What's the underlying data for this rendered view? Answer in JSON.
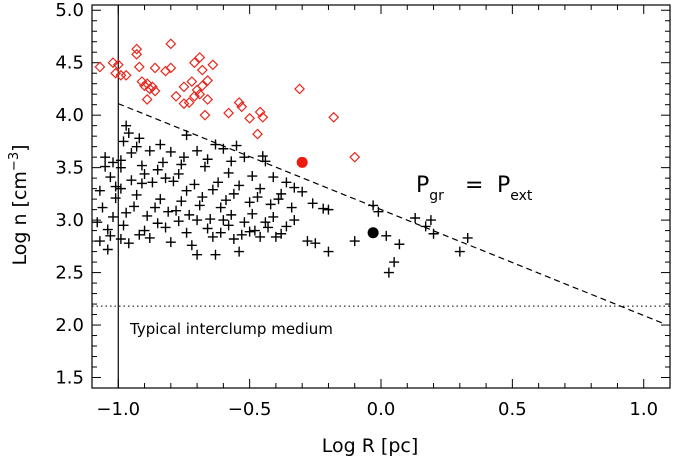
{
  "chart_data": {
    "type": "scatter",
    "xlabel": "Log R [pc]",
    "ylabel_parts": {
      "prefix": "Log n [cm",
      "sup": "−3",
      "suffix": "]"
    },
    "xlim": [
      -1.1,
      1.1
    ],
    "ylim": [
      1.4,
      5.05
    ],
    "xticks": [
      -1.0,
      -0.5,
      0.0,
      0.5,
      1.0
    ],
    "xtick_labels": [
      "−1.0",
      "−0.5",
      "0.0",
      "0.5",
      "1.0"
    ],
    "yticks": [
      1.5,
      2.0,
      2.5,
      3.0,
      3.5,
      4.0,
      4.5,
      5.0
    ],
    "ytick_labels": [
      "1.5",
      "2.0",
      "2.5",
      "3.0",
      "3.5",
      "4.0",
      "4.5",
      "5.0"
    ],
    "grid": false,
    "colors": {
      "crosses": "#000000",
      "diamonds": "#e8281e",
      "red_dot": "#ee1a0e",
      "black_dot": "#000000"
    },
    "series": [
      {
        "marker": "plus",
        "points": [
          [
            -0.98,
            3.75
          ],
          [
            -0.96,
            3.83
          ],
          [
            -0.92,
            3.78
          ],
          [
            -0.84,
            3.72
          ],
          [
            -0.74,
            3.81
          ],
          [
            -0.63,
            3.72
          ],
          [
            -0.55,
            3.71
          ],
          [
            -0.45,
            3.61
          ],
          [
            -0.44,
            3.56
          ],
          [
            -0.52,
            3.6
          ],
          [
            -0.6,
            3.68
          ],
          [
            -0.7,
            3.66
          ],
          [
            -0.8,
            3.65
          ],
          [
            -0.88,
            3.66
          ],
          [
            -0.95,
            3.64
          ],
          [
            -1.02,
            3.55
          ],
          [
            -1.05,
            3.51
          ],
          [
            -0.99,
            3.5
          ],
          [
            -0.91,
            3.52
          ],
          [
            -0.85,
            3.48
          ],
          [
            -0.76,
            3.53
          ],
          [
            -0.67,
            3.51
          ],
          [
            -0.58,
            3.45
          ],
          [
            -0.49,
            3.42
          ],
          [
            -0.41,
            3.41
          ],
          [
            -0.36,
            3.36
          ],
          [
            -0.33,
            3.31
          ],
          [
            -0.3,
            3.27
          ],
          [
            -0.38,
            3.25
          ],
          [
            -0.46,
            3.3
          ],
          [
            -0.54,
            3.33
          ],
          [
            -0.62,
            3.36
          ],
          [
            -0.71,
            3.34
          ],
          [
            -0.79,
            3.37
          ],
          [
            -0.87,
            3.36
          ],
          [
            -0.95,
            3.38
          ],
          [
            -1.03,
            3.41
          ],
          [
            -1.07,
            3.28
          ],
          [
            -1.01,
            3.21
          ],
          [
            -0.93,
            3.24
          ],
          [
            -0.84,
            3.2
          ],
          [
            -0.76,
            3.18
          ],
          [
            -0.68,
            3.22
          ],
          [
            -0.59,
            3.19
          ],
          [
            -0.5,
            3.17
          ],
          [
            -0.42,
            3.15
          ],
          [
            -0.34,
            3.12
          ],
          [
            -0.26,
            3.16
          ],
          [
            -0.22,
            3.11
          ],
          [
            -0.2,
            3.1
          ],
          [
            -1.06,
            3.12
          ],
          [
            -1.02,
            3.03
          ],
          [
            -0.97,
            3.07
          ],
          [
            -0.89,
            3.04
          ],
          [
            -0.81,
            3.08
          ],
          [
            -0.73,
            3.05
          ],
          [
            -0.65,
            3.01
          ],
          [
            -0.57,
            3.05
          ],
          [
            -0.49,
            3.06
          ],
          [
            -0.41,
            3.03
          ],
          [
            -0.33,
            3.0
          ],
          [
            -1.08,
            2.98
          ],
          [
            -1.04,
            2.91
          ],
          [
            -0.98,
            2.95
          ],
          [
            -0.9,
            2.9
          ],
          [
            -0.82,
            2.93
          ],
          [
            -0.74,
            2.88
          ],
          [
            -0.66,
            2.92
          ],
          [
            -0.58,
            2.95
          ],
          [
            -0.5,
            2.89
          ],
          [
            -0.43,
            2.93
          ],
          [
            -0.38,
            2.87
          ],
          [
            -1.07,
            2.8
          ],
          [
            -1.03,
            2.85
          ],
          [
            -0.96,
            2.78
          ],
          [
            -0.88,
            2.83
          ],
          [
            -0.8,
            2.79
          ],
          [
            -0.72,
            2.76
          ],
          [
            -0.64,
            2.84
          ],
          [
            -0.56,
            2.82
          ],
          [
            -0.48,
            2.9
          ],
          [
            -0.4,
            2.84
          ],
          [
            -0.7,
            2.67
          ],
          [
            -0.63,
            2.67
          ],
          [
            -0.54,
            2.7
          ],
          [
            -0.28,
            2.8
          ],
          [
            -0.25,
            2.78
          ],
          [
            -0.2,
            2.7
          ],
          [
            -0.1,
            2.8
          ],
          [
            -0.03,
            3.14
          ],
          [
            -0.01,
            3.08
          ],
          [
            0.02,
            2.85
          ],
          [
            0.07,
            2.77
          ],
          [
            0.05,
            2.6
          ],
          [
            0.03,
            2.5
          ],
          [
            0.13,
            3.02
          ],
          [
            0.17,
            2.94
          ],
          [
            0.19,
            3.0
          ],
          [
            0.2,
            2.87
          ],
          [
            0.3,
            2.7
          ],
          [
            0.33,
            2.83
          ],
          [
            -1.05,
            3.6
          ],
          [
            -0.99,
            3.57
          ],
          [
            -0.9,
            3.44
          ],
          [
            -0.82,
            3.4
          ],
          [
            -0.77,
            3.44
          ],
          [
            -0.64,
            3.29
          ],
          [
            -0.56,
            3.25
          ],
          [
            -0.47,
            3.22
          ],
          [
            -0.39,
            3.2
          ],
          [
            -1.01,
            3.32
          ],
          [
            -0.94,
            3.13
          ],
          [
            -0.86,
            3.12
          ],
          [
            -0.78,
            3.09
          ],
          [
            -0.69,
            3.14
          ],
          [
            -0.61,
            3.12
          ],
          [
            -0.52,
            2.98
          ],
          [
            -0.44,
            2.98
          ],
          [
            -0.36,
            2.94
          ],
          [
            -1.04,
            2.72
          ],
          [
            -0.99,
            2.82
          ],
          [
            -0.92,
            2.86
          ],
          [
            -0.85,
            2.97
          ],
          [
            -0.77,
            2.99
          ],
          [
            -0.7,
            3.0
          ],
          [
            -0.61,
            2.88
          ],
          [
            -0.53,
            2.86
          ],
          [
            -0.46,
            2.84
          ],
          [
            -0.97,
            3.9
          ],
          [
            -0.93,
            3.7
          ],
          [
            -0.83,
            3.55
          ],
          [
            -0.75,
            3.6
          ],
          [
            -0.66,
            3.58
          ],
          [
            -0.57,
            3.56
          ],
          [
            -0.99,
            3.3
          ],
          [
            -0.91,
            3.35
          ],
          [
            -0.74,
            3.28
          ],
          [
            -0.6,
            3.0
          ]
        ]
      },
      {
        "marker": "diamond",
        "points": [
          [
            -1.07,
            4.46
          ],
          [
            -1.02,
            4.5
          ],
          [
            -1.0,
            4.48
          ],
          [
            -1.01,
            4.4
          ],
          [
            -0.99,
            4.38
          ],
          [
            -0.97,
            4.38
          ],
          [
            -0.93,
            4.63
          ],
          [
            -0.93,
            4.58
          ],
          [
            -0.92,
            4.46
          ],
          [
            -0.91,
            4.32
          ],
          [
            -0.9,
            4.28
          ],
          [
            -0.89,
            4.3
          ],
          [
            -0.88,
            4.25
          ],
          [
            -0.87,
            4.27
          ],
          [
            -0.86,
            4.23
          ],
          [
            -0.89,
            4.15
          ],
          [
            -0.86,
            4.45
          ],
          [
            -0.82,
            4.42
          ],
          [
            -0.8,
            4.68
          ],
          [
            -0.8,
            4.45
          ],
          [
            -0.78,
            4.18
          ],
          [
            -0.75,
            4.11
          ],
          [
            -0.73,
            4.12
          ],
          [
            -0.75,
            4.27
          ],
          [
            -0.72,
            4.32
          ],
          [
            -0.71,
            4.18
          ],
          [
            -0.7,
            4.24
          ],
          [
            -0.69,
            4.2
          ],
          [
            -0.68,
            4.28
          ],
          [
            -0.71,
            4.5
          ],
          [
            -0.69,
            4.55
          ],
          [
            -0.68,
            4.43
          ],
          [
            -0.66,
            4.33
          ],
          [
            -0.66,
            4.15
          ],
          [
            -0.64,
            4.48
          ],
          [
            -0.67,
            4.0
          ],
          [
            -0.58,
            4.02
          ],
          [
            -0.54,
            4.12
          ],
          [
            -0.53,
            4.08
          ],
          [
            -0.5,
            3.97
          ],
          [
            -0.46,
            4.03
          ],
          [
            -0.45,
            3.98
          ],
          [
            -0.47,
            3.82
          ],
          [
            -0.31,
            4.25
          ],
          [
            -0.18,
            3.98
          ],
          [
            -0.1,
            3.6
          ]
        ]
      },
      {
        "marker": "filled-circle",
        "color": "red_dot",
        "points": [
          [
            -0.3,
            3.55
          ]
        ]
      },
      {
        "marker": "filled-circle",
        "color": "black_dot",
        "points": [
          [
            -0.03,
            2.88
          ]
        ]
      }
    ],
    "lines": [
      {
        "style": "solid",
        "x": -1.0
      },
      {
        "style": "dashed",
        "from": [
          -1.0,
          4.11
        ],
        "to": [
          1.07,
          2.02
        ]
      },
      {
        "style": "dotted",
        "y": 2.18
      }
    ],
    "annotations": {
      "equation": {
        "lhs": "P",
        "lhs_sub": "gr",
        "op": "=",
        "rhs": "P",
        "rhs_sub": "ext"
      },
      "interclump_label": "Typical interclump medium"
    }
  }
}
